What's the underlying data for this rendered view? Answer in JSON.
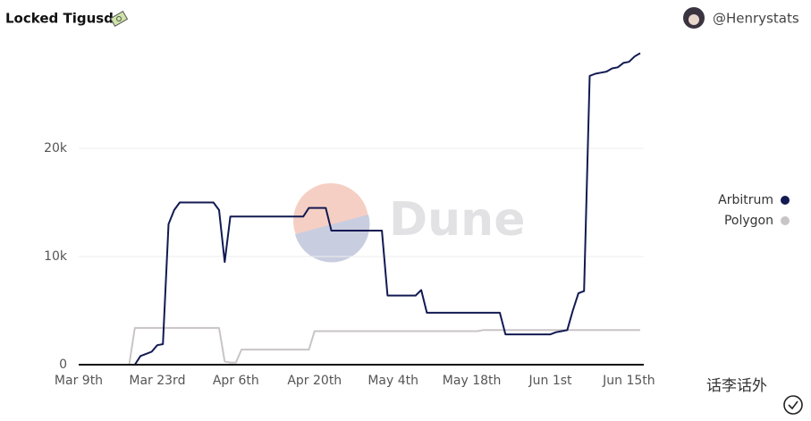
{
  "chart_data": {
    "type": "line",
    "title": "Locked Tigusd",
    "author": "@Henrystats",
    "watermark": "Dune",
    "overlay_text": "话李话外",
    "categories": [
      "Mar 9th",
      null,
      null,
      null,
      null,
      null,
      null,
      null,
      null,
      null,
      null,
      null,
      null,
      null,
      "Mar 23rd",
      null,
      null,
      null,
      null,
      null,
      null,
      null,
      null,
      null,
      null,
      null,
      null,
      null,
      "Apr 6th",
      null,
      null,
      null,
      null,
      null,
      null,
      null,
      null,
      null,
      null,
      null,
      null,
      null,
      "Apr 20th",
      null,
      null,
      null,
      null,
      null,
      null,
      null,
      null,
      null,
      null,
      null,
      null,
      null,
      "May 4th",
      null,
      null,
      null,
      null,
      null,
      null,
      null,
      null,
      null,
      null,
      null,
      null,
      null,
      "May 18th",
      null,
      null,
      null,
      null,
      null,
      null,
      null,
      null,
      null,
      null,
      null,
      null,
      null,
      "Jun 1st",
      null,
      null,
      null,
      null,
      null,
      null,
      null,
      null,
      null,
      null,
      null,
      null,
      null,
      "Jun 15th",
      null,
      null
    ],
    "series": [
      {
        "name": "Arbitrum",
        "color": "#121a52",
        "values": [
          0,
          0,
          0,
          0,
          0,
          0,
          0,
          0,
          0,
          0,
          0,
          800,
          1000,
          1200,
          1800,
          1900,
          13000,
          14300,
          15000,
          15000,
          15000,
          15000,
          15000,
          15000,
          15000,
          14300,
          9500,
          13700,
          13700,
          13700,
          13700,
          13700,
          13700,
          13700,
          13700,
          13700,
          13700,
          13700,
          13700,
          13700,
          13700,
          14500,
          14500,
          14500,
          14500,
          12400,
          12400,
          12400,
          12400,
          12400,
          12400,
          12400,
          12400,
          12400,
          12400,
          6400,
          6400,
          6400,
          6400,
          6400,
          6400,
          6900,
          4800,
          4800,
          4800,
          4800,
          4800,
          4800,
          4800,
          4800,
          4800,
          4800,
          4800,
          4800,
          4800,
          4800,
          2800,
          2800,
          2800,
          2800,
          2800,
          2800,
          2800,
          2800,
          2800,
          3000,
          3100,
          3200,
          5000,
          6600,
          6800,
          26700,
          26900,
          27000,
          27100,
          27400,
          27500,
          27900,
          28000,
          28500,
          28800
        ]
      },
      {
        "name": "Polygon",
        "color": "#c9c4c7",
        "values": [
          0,
          0,
          0,
          0,
          0,
          0,
          0,
          0,
          0,
          0,
          3400,
          3400,
          3400,
          3400,
          3400,
          3400,
          3400,
          3400,
          3400,
          3400,
          3400,
          3400,
          3400,
          3400,
          3400,
          3400,
          300,
          200,
          200,
          1400,
          1400,
          1400,
          1400,
          1400,
          1400,
          1400,
          1400,
          1400,
          1400,
          1400,
          1400,
          1400,
          3100,
          3100,
          3100,
          3100,
          3100,
          3100,
          3100,
          3100,
          3100,
          3100,
          3100,
          3100,
          3100,
          3100,
          3100,
          3100,
          3100,
          3100,
          3100,
          3100,
          3100,
          3100,
          3100,
          3100,
          3100,
          3100,
          3100,
          3100,
          3100,
          3100,
          3200,
          3200,
          3200,
          3200,
          3200,
          3200,
          3200,
          3200,
          3200,
          3200,
          3200,
          3200,
          3200,
          3200,
          3200,
          3200,
          3200,
          3200,
          3200,
          3200,
          3200,
          3200,
          3200,
          3200,
          3200,
          3200,
          3200,
          3200,
          3200
        ]
      }
    ],
    "ylim": [
      0,
      30000
    ],
    "yticks": [
      0,
      {
        "value": 10000,
        "label": "10k"
      },
      {
        "value": 20000,
        "label": "20k"
      }
    ],
    "grid": true
  }
}
